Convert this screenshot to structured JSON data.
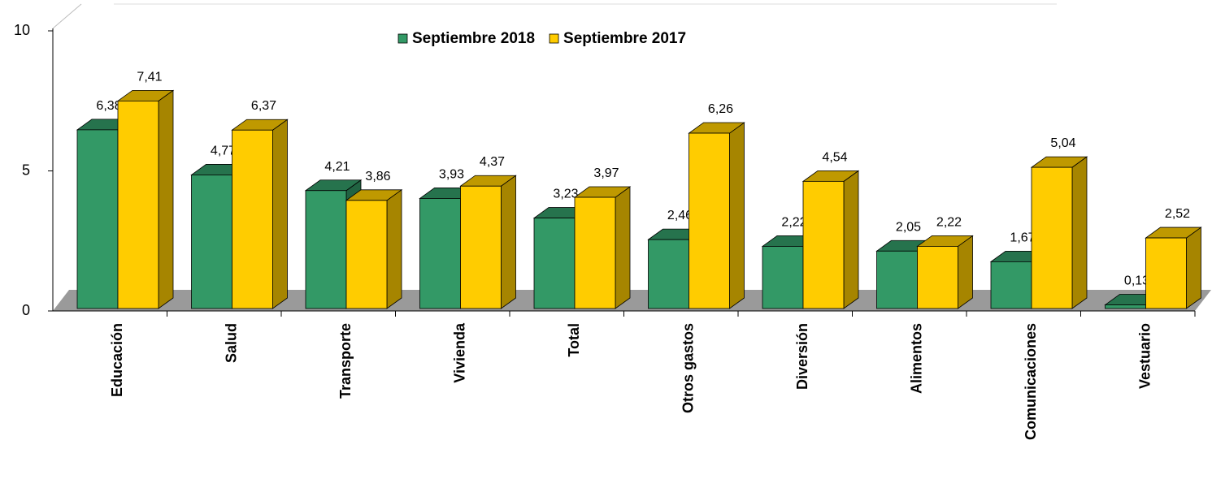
{
  "chart_data": {
    "type": "bar3d",
    "categories": [
      "Educación",
      "Salud",
      "Transporte",
      "Vivienda",
      "Total",
      "Otros gastos",
      "Diversión",
      "Alimentos",
      "Comunicaciones",
      "Vestuario"
    ],
    "series": [
      {
        "name": "Septiembre 2018",
        "color": "#339966",
        "values": [
          6.38,
          4.77,
          4.21,
          3.93,
          3.23,
          2.46,
          2.22,
          2.05,
          1.67,
          0.13
        ],
        "value_labels": [
          "6,38",
          "4,77",
          "4,21",
          "3,93",
          "3,23",
          "2,46",
          "2,22",
          "2,05",
          "1,67",
          "0,13"
        ]
      },
      {
        "name": "Septiembre 2017",
        "color": "#ffcc00",
        "values": [
          7.41,
          6.37,
          3.86,
          4.37,
          3.97,
          6.26,
          4.54,
          2.22,
          5.04,
          2.52
        ],
        "value_labels": [
          "7,41",
          "6,37",
          "3,86",
          "4,37",
          "3,97",
          "6,26",
          "4,54",
          "2,22",
          "5,04",
          "2,52"
        ]
      }
    ],
    "ylim": [
      0,
      10
    ],
    "yticks": [
      0,
      5,
      10
    ],
    "legend": "top"
  }
}
